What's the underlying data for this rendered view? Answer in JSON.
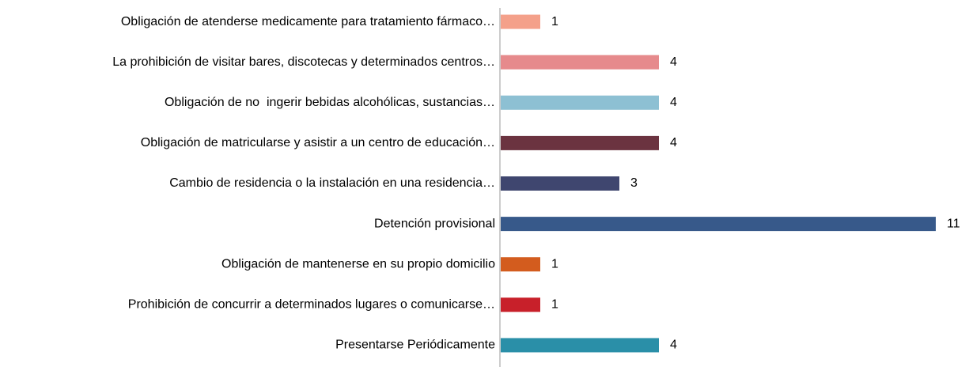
{
  "chart_data": {
    "type": "barh",
    "categories": [
      "Obligación de atenderse medicamente para tratamiento fármaco…",
      "La prohibición de visitar bares, discotecas y determinados centros…",
      "Obligación de no  ingerir bebidas alcohólicas, sustancias…",
      "Obligación de matricularse y asistir a un centro de educación…",
      "Cambio de residencia o la instalación en una residencia…",
      "Detención provisional",
      "Obligación de mantenerse en su propio domicilio",
      "Prohibición de concurrir a determinados lugares o comunicarse…",
      "Presentarse Periódicamente"
    ],
    "values": [
      1,
      4,
      4,
      4,
      3,
      11,
      1,
      1,
      4
    ],
    "colors": [
      "#f4a08a",
      "#e68a8c",
      "#8dc0d3",
      "#6b3340",
      "#3f466f",
      "#37598a",
      "#d35c1e",
      "#c8202a",
      "#2a8fa8"
    ]
  }
}
